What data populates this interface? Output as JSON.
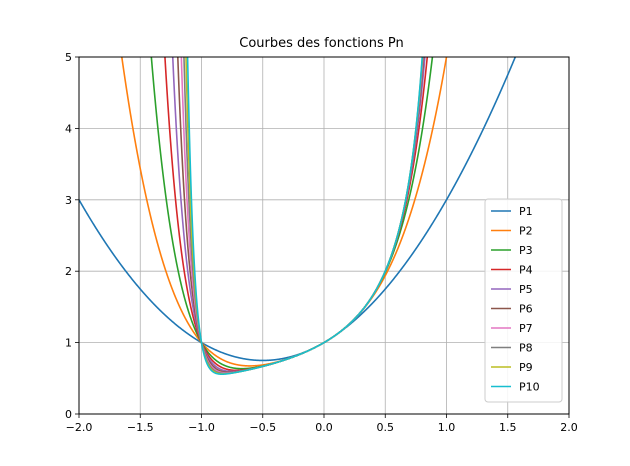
{
  "chart_data": {
    "type": "line",
    "title": "Courbes des fonctions Pn",
    "xlabel": "",
    "ylabel": "",
    "xlim": [
      -2.0,
      2.0
    ],
    "ylim": [
      0,
      5
    ],
    "x_ticks": [
      "−2.0",
      "−1.5",
      "−1.0",
      "−0.5",
      "0.0",
      "0.5",
      "1.0",
      "1.5",
      "2.0"
    ],
    "y_ticks": [
      "0",
      "1",
      "2",
      "3",
      "4",
      "5"
    ],
    "grid": true,
    "legend_position": "lower-right",
    "formula_note_free": true,
    "series": [
      {
        "name": "P1",
        "n": 1,
        "color": "#1f77b4"
      },
      {
        "name": "P2",
        "n": 2,
        "color": "#ff7f0e"
      },
      {
        "name": "P3",
        "n": 3,
        "color": "#2ca02c"
      },
      {
        "name": "P4",
        "n": 4,
        "color": "#d62728"
      },
      {
        "name": "P5",
        "n": 5,
        "color": "#9467bd"
      },
      {
        "name": "P6",
        "n": 6,
        "color": "#8c564b"
      },
      {
        "name": "P7",
        "n": 7,
        "color": "#e377c2"
      },
      {
        "name": "P8",
        "n": 8,
        "color": "#7f7f7f"
      },
      {
        "name": "P9",
        "n": 9,
        "color": "#bcbd22"
      },
      {
        "name": "P10",
        "n": 10,
        "color": "#17becf"
      }
    ]
  }
}
